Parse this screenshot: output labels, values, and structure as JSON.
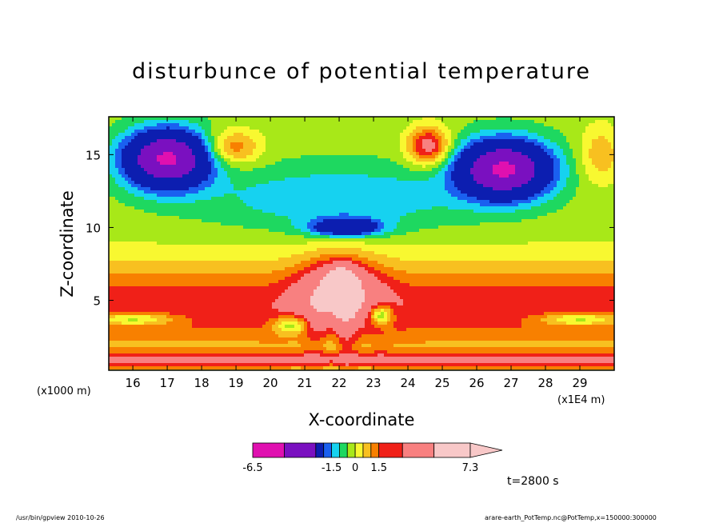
{
  "chart_data": {
    "type": "heatmap",
    "title": "disturbunce of potential temperature",
    "xlabel": "X-coordinate",
    "ylabel": "Z-coordinate",
    "x_unit": "(x1000 m)",
    "x_unit_secondary": "(x1E4 m)",
    "xlim": [
      15.3,
      30.0
    ],
    "ylim": [
      0.2,
      17.6
    ],
    "x_ticks": [
      "16",
      "17",
      "18",
      "19",
      "20",
      "21",
      "22",
      "23",
      "24",
      "25",
      "26",
      "27",
      "28",
      "29"
    ],
    "y_ticks": [
      "5",
      "10",
      "15"
    ],
    "time_label": "t=2800 s",
    "colorbar": {
      "colors": [
        "#e010b0",
        "#7a10c0",
        "#0c1eb0",
        "#1a60f0",
        "#16d2f0",
        "#1ed860",
        "#a8e818",
        "#f8f830",
        "#f8c020",
        "#f88000",
        "#f02018",
        "#f88080",
        "#f8c8c8"
      ],
      "tick_labels": [
        "-6.5",
        "-1.5",
        "0",
        "1.5",
        "7.3"
      ],
      "tick_values": [
        -6.5,
        -1.5,
        0,
        1.5,
        7.3
      ]
    },
    "levels": [
      -6.5,
      -4.5,
      -2.5,
      -2.0,
      -1.5,
      -1.0,
      -0.5,
      0,
      0.5,
      1.0,
      1.5,
      3.0,
      5.0,
      7.3
    ],
    "features": [
      {
        "x": 17.0,
        "z": 15.0,
        "value": -4.0
      },
      {
        "x": 26.8,
        "z": 14.2,
        "value": -4.0
      },
      {
        "x": 22.2,
        "z": 10.0,
        "value": -2.5
      },
      {
        "x": 24.6,
        "z": 15.5,
        "value": 2.0
      },
      {
        "x": 22.0,
        "z": 6.5,
        "value": 5.0
      },
      {
        "x": 23.2,
        "z": 4.0,
        "value": -0.8
      }
    ]
  },
  "footer": {
    "left": "/usr/bin/gpview   2010-10-26",
    "right": "arare-earth_PotTemp.nc@PotTemp,x=150000:300000"
  }
}
